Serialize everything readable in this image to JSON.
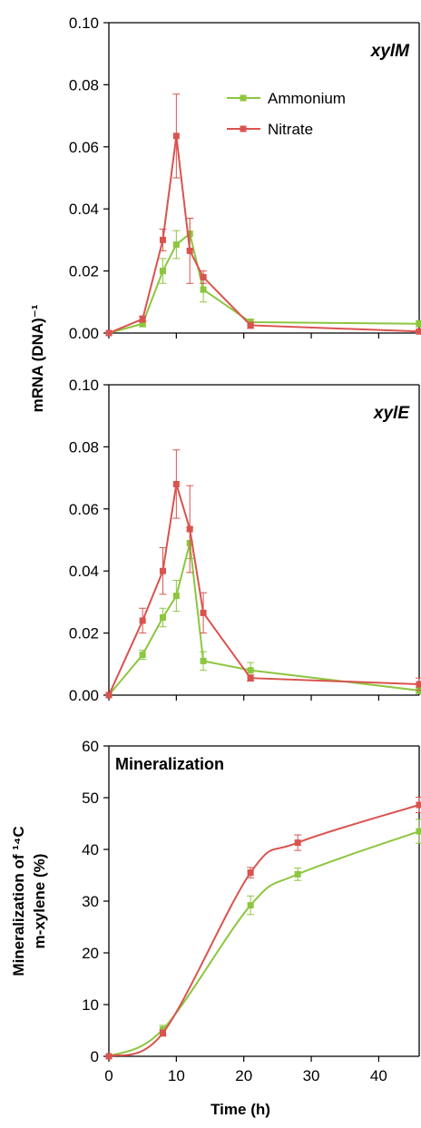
{
  "colors": {
    "ammonium": "#8dc63f",
    "nitrate": "#d9534f",
    "axis": "#000000"
  },
  "shared_ylabel": "mRNA (DNA)⁻¹",
  "chart_data": [
    {
      "type": "line",
      "title": "xylM",
      "xlabel": "",
      "ylabel": "mRNA (DNA)⁻¹",
      "xlim": [
        0,
        46
      ],
      "ylim": [
        0,
        0.1
      ],
      "yticks": [
        "0.00",
        "0.02",
        "0.04",
        "0.06",
        "0.08",
        "0.10"
      ],
      "grid": false,
      "legend_position": "top-right",
      "series": [
        {
          "name": "Ammonium",
          "color": "#8dc63f",
          "x": [
            0,
            5,
            8,
            10,
            12,
            14,
            21,
            46
          ],
          "y": [
            0.0,
            0.003,
            0.02,
            0.0285,
            0.032,
            0.014,
            0.0035,
            0.003
          ],
          "err": [
            0.0,
            0.001,
            0.004,
            0.0045,
            0.005,
            0.004,
            0.001,
            0.001
          ]
        },
        {
          "name": "Nitrate",
          "color": "#d9534f",
          "x": [
            0,
            5,
            8,
            10,
            12,
            14,
            21,
            46
          ],
          "y": [
            0.0,
            0.0045,
            0.03,
            0.0635,
            0.0265,
            0.018,
            0.0025,
            0.0005
          ],
          "err": [
            0.0,
            0.001,
            0.0035,
            0.0135,
            0.0105,
            0.002,
            0.001,
            0.0005
          ]
        }
      ]
    },
    {
      "type": "line",
      "title": "xylE",
      "xlabel": "",
      "ylabel": "mRNA (DNA)⁻¹",
      "xlim": [
        0,
        46
      ],
      "ylim": [
        0,
        0.1
      ],
      "yticks": [
        "0.00",
        "0.02",
        "0.04",
        "0.06",
        "0.08",
        "0.10"
      ],
      "grid": false,
      "series": [
        {
          "name": "Ammonium",
          "color": "#8dc63f",
          "x": [
            0,
            5,
            8,
            10,
            12,
            14,
            21,
            46
          ],
          "y": [
            0.0,
            0.013,
            0.025,
            0.032,
            0.049,
            0.011,
            0.008,
            0.0015
          ],
          "err": [
            0.0,
            0.0015,
            0.003,
            0.005,
            0.005,
            0.003,
            0.0025,
            0.001
          ]
        },
        {
          "name": "Nitrate",
          "color": "#d9534f",
          "x": [
            0,
            5,
            8,
            10,
            12,
            14,
            21,
            46
          ],
          "y": [
            0.0,
            0.024,
            0.04,
            0.068,
            0.0535,
            0.0265,
            0.0055,
            0.0035
          ],
          "err": [
            0.0,
            0.004,
            0.0075,
            0.011,
            0.014,
            0.0065,
            0.001,
            0.002
          ]
        }
      ]
    },
    {
      "type": "line",
      "title": "Mineralization",
      "xlabel": "Time (h)",
      "ylabel_lines": [
        "Mineralization of ¹⁴C",
        "m-xylene (%)"
      ],
      "xlim": [
        0,
        46
      ],
      "ylim": [
        0,
        60
      ],
      "xticks": [
        "0",
        "10",
        "20",
        "30",
        "40"
      ],
      "yticks": [
        "0",
        "10",
        "20",
        "30",
        "40",
        "50",
        "60"
      ],
      "grid": false,
      "smooth": true,
      "series": [
        {
          "name": "Ammonium",
          "color": "#8dc63f",
          "x": [
            0,
            8,
            21,
            28,
            46
          ],
          "y": [
            0,
            5.2,
            29.2,
            35.2,
            43.5
          ],
          "err": [
            0,
            0.8,
            1.8,
            1.2,
            2.3
          ]
        },
        {
          "name": "Nitrate",
          "color": "#d9534f",
          "x": [
            0,
            8,
            21,
            28,
            46
          ],
          "y": [
            0,
            4.5,
            35.5,
            41.3,
            48.6
          ],
          "err": [
            0,
            0.6,
            1.0,
            1.5,
            1.5
          ]
        }
      ]
    }
  ]
}
